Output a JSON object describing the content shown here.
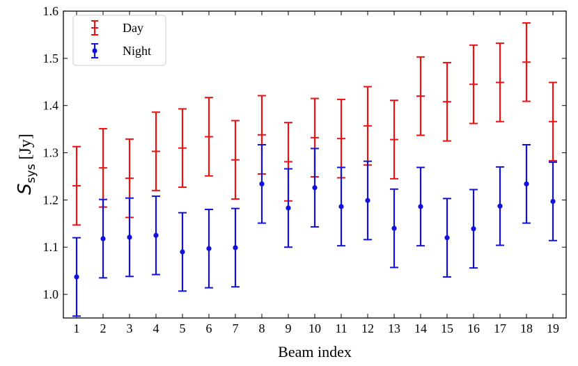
{
  "chart_data": {
    "type": "scatter",
    "title": "",
    "xlabel": "Beam index",
    "ylabel": "S_sys [Jy]",
    "ylabel_parts": {
      "symbol": "S",
      "subscript": "sys",
      "unit": "[Jy]"
    },
    "xlim": [
      0.5,
      19.5
    ],
    "ylim": [
      0.95,
      1.6
    ],
    "x_ticks": [
      1,
      2,
      3,
      4,
      5,
      6,
      7,
      8,
      9,
      10,
      11,
      12,
      13,
      14,
      15,
      16,
      17,
      18,
      19
    ],
    "x_tick_labels": [
      "1",
      "2",
      "3",
      "4",
      "5",
      "6",
      "7",
      "8",
      "9",
      "10",
      "11",
      "12",
      "13",
      "14",
      "15",
      "16",
      "17",
      "18",
      "19"
    ],
    "y_ticks": [
      1.0,
      1.1,
      1.2,
      1.3,
      1.4,
      1.5,
      1.6
    ],
    "y_tick_labels": [
      "1.0",
      "1.1",
      "1.2",
      "1.3",
      "1.4",
      "1.5",
      "1.6"
    ],
    "grid": false,
    "legend_position": "top-left",
    "series": [
      {
        "name": "Day",
        "color": "#ee1111",
        "marker": "hline",
        "x": [
          1,
          2,
          3,
          4,
          5,
          6,
          7,
          8,
          9,
          10,
          11,
          12,
          13,
          14,
          15,
          16,
          17,
          18,
          19
        ],
        "values": [
          1.23,
          1.268,
          1.246,
          1.303,
          1.31,
          1.334,
          1.285,
          1.338,
          1.281,
          1.332,
          1.33,
          1.357,
          1.328,
          1.42,
          1.408,
          1.445,
          1.449,
          1.492,
          1.366
        ],
        "errors": [
          0.083,
          0.083,
          0.083,
          0.083,
          0.083,
          0.083,
          0.083,
          0.083,
          0.083,
          0.083,
          0.083,
          0.083,
          0.083,
          0.083,
          0.083,
          0.083,
          0.083,
          0.083,
          0.083
        ]
      },
      {
        "name": "Night",
        "color": "#1111dd",
        "marker": "circle",
        "x": [
          1,
          2,
          3,
          4,
          5,
          6,
          7,
          8,
          9,
          10,
          11,
          12,
          13,
          14,
          15,
          16,
          17,
          18,
          19
        ],
        "values": [
          1.037,
          1.118,
          1.121,
          1.125,
          1.09,
          1.097,
          1.099,
          1.234,
          1.183,
          1.226,
          1.186,
          1.199,
          1.14,
          1.186,
          1.12,
          1.139,
          1.187,
          1.234,
          1.197
        ],
        "errors": [
          0.083,
          0.083,
          0.083,
          0.083,
          0.083,
          0.083,
          0.083,
          0.083,
          0.083,
          0.083,
          0.083,
          0.083,
          0.083,
          0.083,
          0.083,
          0.083,
          0.083,
          0.083,
          0.083
        ]
      }
    ]
  }
}
